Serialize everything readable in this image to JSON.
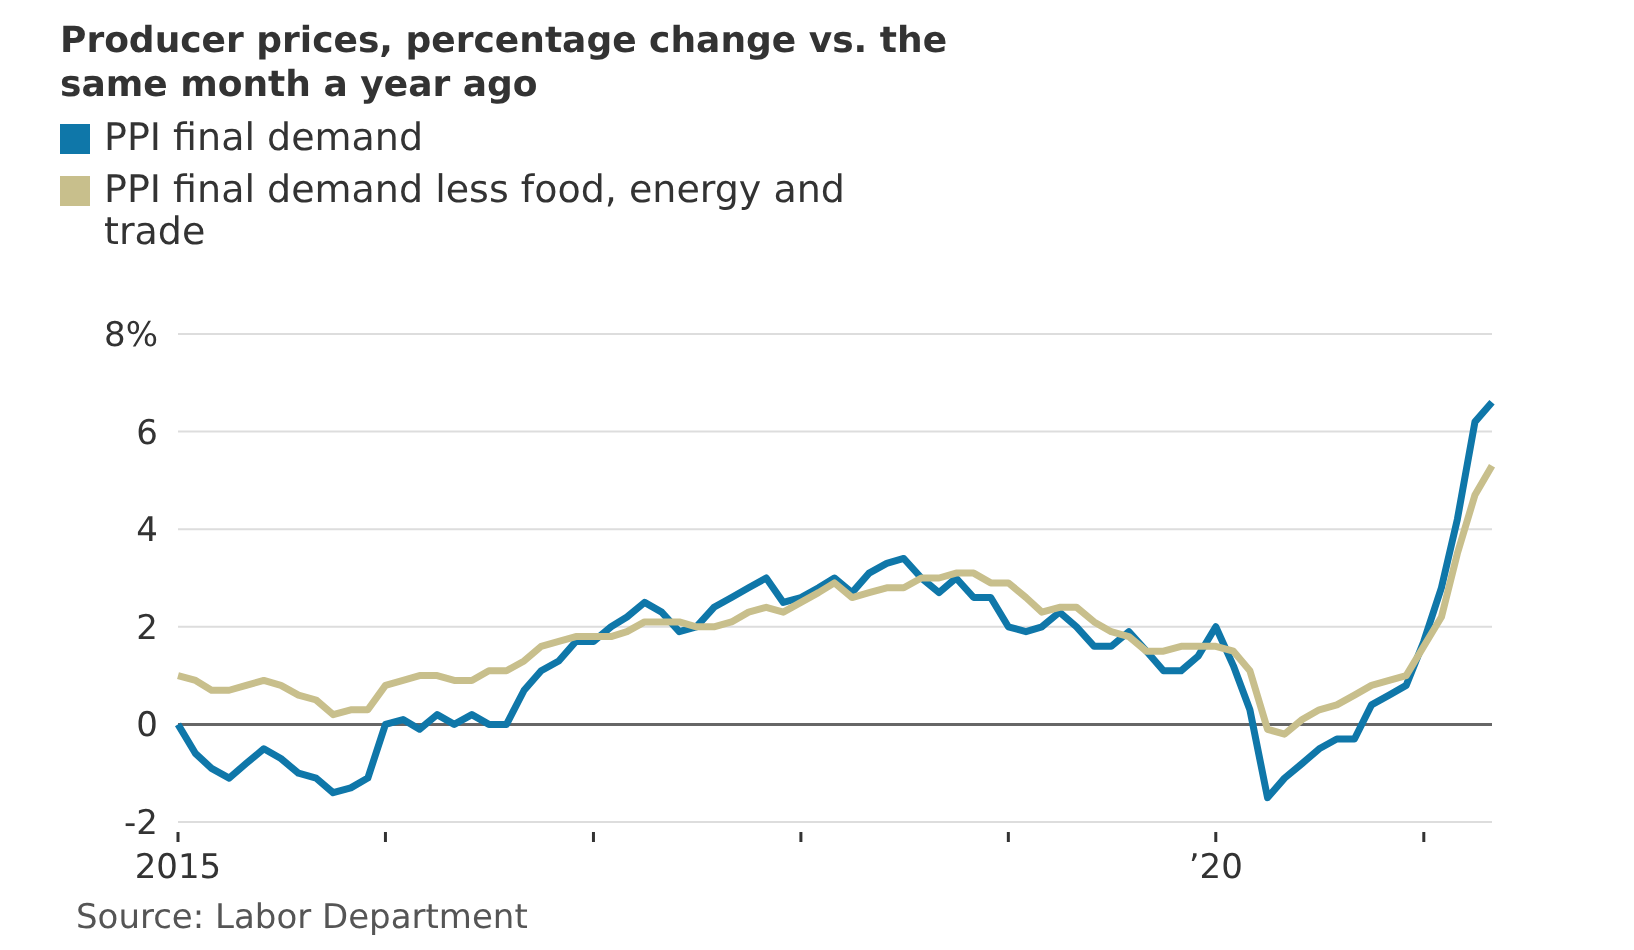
{
  "chart_data": {
    "type": "line",
    "title": "Producer prices, percentage change vs. the same month a year ago",
    "x": [
      "2015-01",
      "2015-02",
      "2015-03",
      "2015-04",
      "2015-05",
      "2015-06",
      "2015-07",
      "2015-08",
      "2015-09",
      "2015-10",
      "2015-11",
      "2015-12",
      "2016-01",
      "2016-02",
      "2016-03",
      "2016-04",
      "2016-05",
      "2016-06",
      "2016-07",
      "2016-08",
      "2016-09",
      "2016-10",
      "2016-11",
      "2016-12",
      "2017-01",
      "2017-02",
      "2017-03",
      "2017-04",
      "2017-05",
      "2017-06",
      "2017-07",
      "2017-08",
      "2017-09",
      "2017-10",
      "2017-11",
      "2017-12",
      "2018-01",
      "2018-02",
      "2018-03",
      "2018-04",
      "2018-05",
      "2018-06",
      "2018-07",
      "2018-08",
      "2018-09",
      "2018-10",
      "2018-11",
      "2018-12",
      "2019-01",
      "2019-02",
      "2019-03",
      "2019-04",
      "2019-05",
      "2019-06",
      "2019-07",
      "2019-08",
      "2019-09",
      "2019-10",
      "2019-11",
      "2019-12",
      "2020-01",
      "2020-02",
      "2020-03",
      "2020-04",
      "2020-05",
      "2020-06",
      "2020-07",
      "2020-08",
      "2020-09",
      "2020-10",
      "2020-11",
      "2020-12",
      "2021-01",
      "2021-02",
      "2021-03",
      "2021-04",
      "2021-05"
    ],
    "series": [
      {
        "name": "PPI final demand",
        "color": "#0f77a9",
        "values": [
          0,
          -0.6,
          -0.9,
          -1.1,
          -0.8,
          -0.5,
          -0.7,
          -1.0,
          -1.1,
          -1.4,
          -1.3,
          -1.1,
          0.0,
          0.1,
          -0.1,
          0.2,
          0.0,
          0.2,
          0.0,
          0.0,
          0.7,
          1.1,
          1.3,
          1.7,
          1.7,
          2.0,
          2.2,
          2.5,
          2.3,
          1.9,
          2.0,
          2.4,
          2.6,
          2.8,
          3.0,
          2.5,
          2.6,
          2.8,
          3.0,
          2.7,
          3.1,
          3.3,
          3.4,
          3.0,
          2.7,
          3.0,
          2.6,
          2.6,
          2.0,
          1.9,
          2.0,
          2.3,
          2.0,
          1.6,
          1.6,
          1.9,
          1.5,
          1.1,
          1.1,
          1.4,
          2.0,
          1.2,
          0.3,
          -1.5,
          -1.1,
          -0.8,
          -0.5,
          -0.3,
          -0.3,
          0.4,
          0.6,
          0.8,
          1.7,
          2.8,
          4.2,
          6.2,
          6.6
        ]
      },
      {
        "name": "PPI final demand less food, energy and trade",
        "color": "#c8bf8c",
        "values": [
          1.0,
          0.9,
          0.7,
          0.7,
          0.8,
          0.9,
          0.8,
          0.6,
          0.5,
          0.2,
          0.3,
          0.3,
          0.8,
          0.9,
          1.0,
          1.0,
          0.9,
          0.9,
          1.1,
          1.1,
          1.3,
          1.6,
          1.7,
          1.8,
          1.8,
          1.8,
          1.9,
          2.1,
          2.1,
          2.1,
          2.0,
          2.0,
          2.1,
          2.3,
          2.4,
          2.3,
          2.5,
          2.7,
          2.9,
          2.6,
          2.7,
          2.8,
          2.8,
          3.0,
          3.0,
          3.1,
          3.1,
          2.9,
          2.9,
          2.6,
          2.3,
          2.4,
          2.4,
          2.1,
          1.9,
          1.8,
          1.5,
          1.5,
          1.6,
          1.6,
          1.6,
          1.5,
          1.1,
          -0.1,
          -0.2,
          0.1,
          0.3,
          0.4,
          0.6,
          0.8,
          0.9,
          1.0,
          1.6,
          2.2,
          3.5,
          4.7,
          5.3
        ]
      }
    ],
    "xlim": [
      "2015-01",
      "2021-05"
    ],
    "xticks": [
      {
        "value": "2015-01",
        "label": "2015"
      },
      {
        "value": "2016-01",
        "label": null
      },
      {
        "value": "2017-01",
        "label": null
      },
      {
        "value": "2018-01",
        "label": null
      },
      {
        "value": "2019-01",
        "label": null
      },
      {
        "value": "2020-01",
        "label": "’20"
      },
      {
        "value": "2021-01",
        "label": null
      }
    ],
    "ylim": [
      -2,
      8
    ],
    "yticks": [
      -2,
      0,
      2,
      4,
      6,
      {
        "value": 8,
        "label": "8%"
      }
    ],
    "grid": "y",
    "legend": "top left",
    "line_style": "solid",
    "annotations": [
      "Source: Labor Department"
    ]
  }
}
